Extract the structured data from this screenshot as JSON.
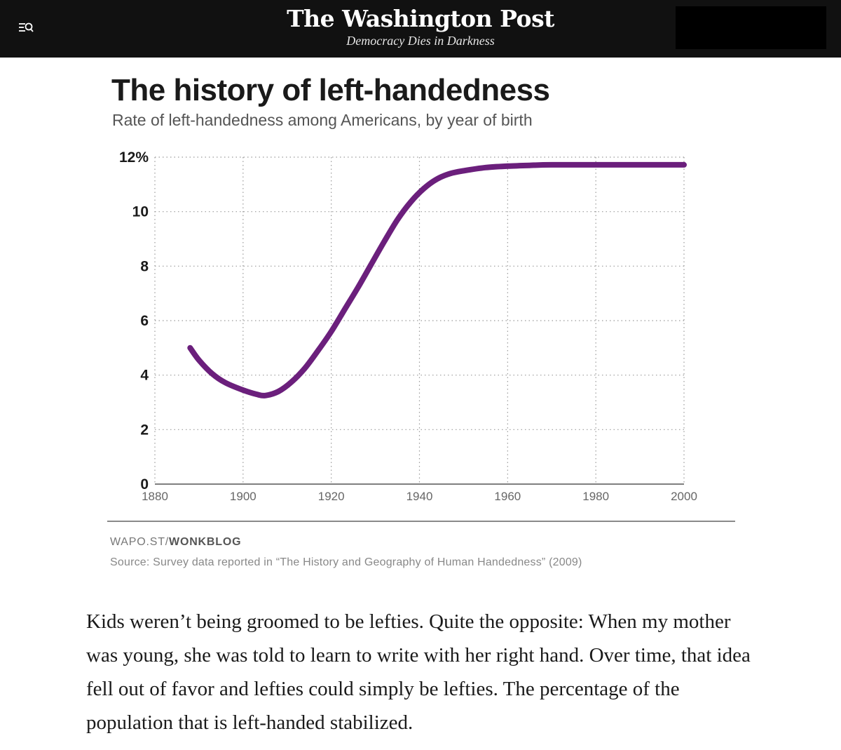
{
  "header": {
    "brand_name": "The Washington Post",
    "tagline": "Democracy Dies in Darkness",
    "background_color": "#111111",
    "menu_icon": "menu-search-icon"
  },
  "chart_data": {
    "type": "line",
    "title": "The history of left-handedness",
    "subtitle": "Rate of left-handedness among Americans, by year of birth",
    "xlabel": "",
    "ylabel": "",
    "xlim": [
      1880,
      2000
    ],
    "ylim": [
      0,
      12
    ],
    "x_ticks": [
      1880,
      1900,
      1920,
      1940,
      1960,
      1980,
      2000
    ],
    "x_tick_labels": [
      "1880",
      "1900",
      "1920",
      "1940",
      "1960",
      "1980",
      "2000"
    ],
    "y_ticks": [
      0,
      2,
      4,
      6,
      8,
      10,
      12
    ],
    "y_tick_labels": [
      "0",
      "2",
      "4",
      "6",
      "8",
      "10",
      "12%"
    ],
    "grid": true,
    "legend": "none",
    "series": [
      {
        "color": "#6b1f7c",
        "x": [
          1888,
          1890,
          1893,
          1896,
          1900,
          1903,
          1905,
          1908,
          1911,
          1914,
          1917,
          1920,
          1923,
          1926,
          1929,
          1932,
          1935,
          1938,
          1941,
          1944,
          1947,
          1950,
          1955,
          1960,
          1965,
          1970,
          1980,
          1990,
          2000
        ],
        "y": [
          5.0,
          4.55,
          4.05,
          3.72,
          3.45,
          3.3,
          3.25,
          3.4,
          3.75,
          4.25,
          4.9,
          5.6,
          6.4,
          7.2,
          8.05,
          8.9,
          9.7,
          10.35,
          10.85,
          11.2,
          11.4,
          11.5,
          11.62,
          11.67,
          11.7,
          11.72,
          11.72,
          11.72,
          11.72
        ]
      }
    ]
  },
  "footer": {
    "credit_prefix": "WAPO.ST/",
    "credit_bold": "WONKBLOG",
    "source": "Source: Survey data reported in “The History and Geography of Human Handedness” (2009)"
  },
  "article": {
    "paragraph": "Kids weren’t being groomed to be lefties. Quite the opposite: When my mother was young, she was told to learn to write with her right hand. Over time, that idea fell out of favor and lefties could simply be lefties. The percentage of the population that is left-handed stabilized."
  }
}
